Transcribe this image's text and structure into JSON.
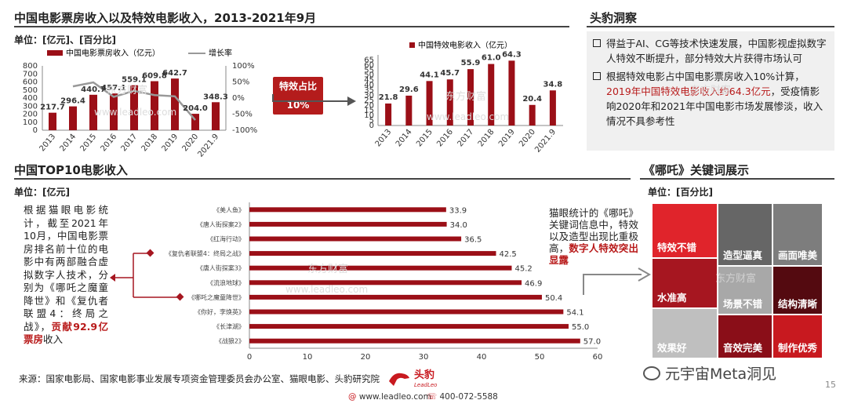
{
  "sections": {
    "box_office_title": "中国电影票房收入以及特效电影收入，2013-2021年9月",
    "insight_title": "头豹洞察",
    "top10_title": "中国TOP10电影收入",
    "keyword_title": "《哪吒》关键词展示"
  },
  "units": {
    "box_office": "单位：[亿元]、[百分比]",
    "top10": "单位：[亿元]",
    "keyword": "单位：[百分比]"
  },
  "callout": {
    "label": "特效占比10%"
  },
  "insights": {
    "item1": "得益于AI、CG等技术快速发展，中国影视虚拟数字人特效不断提升，部分特效大片获得市场认可",
    "item2_a": "根据特效电影占中国电影票房收入10%计算，",
    "item2_b": "2019年中国特效电影收入约64.3亿元",
    "item2_c": "，受疫情影响2020年和2021年中国电影市场发展惨淡，收入情况不具参考性"
  },
  "left_text": {
    "a": "根据猫眼电影统计，截至2021年10月，中国电影票房排名前十位的电影中有两部融合虚拟数字人技术，分别为《哪吒之魔童降世》和《复仇者联盟4：终局之战》，",
    "b": "贡献92.9亿票房",
    "c": "收入"
  },
  "right_text": {
    "a": "猫眼统计的《哪吒》关键词信息中，特效以及造型出现比重极高，",
    "b": "数字人特效突出显露"
  },
  "keywords": [
    {
      "label": "特效不错",
      "color": "#e0242b"
    },
    {
      "label": "造型逼真",
      "color": "#666666"
    },
    {
      "label": "画面唯美",
      "color": "#7d7d7d"
    },
    {
      "label": "水准高",
      "color": "#a61620"
    },
    {
      "label": "场景不错",
      "color": "#a8a8a8"
    },
    {
      "label": "结构清晰",
      "color": "#540a10"
    },
    {
      "label": "效果好",
      "color": "#bfbfbf"
    },
    {
      "label": "音效完美",
      "color": "#8a0e18"
    },
    {
      "label": "制作优秀",
      "color": "#c8191f"
    }
  ],
  "footer": {
    "source": "来源：国家电影局、国家电影事业发展专项资金管理委员会办公室、猫眼电影、头豹研究院",
    "brand_cn": "头豹",
    "brand_en": "LeadLeo",
    "site": "www.leadleo.com",
    "phone": "400-072-5588",
    "page": "15"
  },
  "watermarks": {
    "cn": "东方财富",
    "url": "www.leadleo.com"
  },
  "badge": {
    "source_tag": "元宇宙Meta洞见"
  },
  "colors": {
    "accent": "#9b0f17",
    "line": "#999999",
    "rule": "#444444"
  },
  "chart_data": [
    {
      "type": "bar",
      "categories": [
        "2013",
        "2014",
        "2015",
        "2016",
        "2017",
        "2018",
        "2019",
        "2020",
        "2021.9"
      ],
      "series": [
        {
          "name": "中国电影票房收入（亿元）",
          "type": "bar",
          "axis": "left",
          "values": [
            217.7,
            296.4,
            440.7,
            457.1,
            559.1,
            609.8,
            642.7,
            204.0,
            348.3
          ]
        },
        {
          "name": "增长率",
          "type": "line",
          "axis": "right",
          "values": [
            null,
            36.2,
            48.7,
            3.7,
            22.3,
            9.1,
            5.4,
            -68.3,
            null
          ]
        }
      ],
      "ylim": [
        0,
        800
      ],
      "yticks": [
        "0",
        "100",
        "200",
        "300",
        "400",
        "500",
        "600",
        "700",
        "800"
      ],
      "ylim_right": [
        -100,
        100
      ],
      "yticks_right": [
        "-100%",
        "-50%",
        "0%",
        "50%",
        "100%"
      ],
      "legend": "top"
    },
    {
      "type": "bar",
      "categories": [
        "2013",
        "2014",
        "2015",
        "2016",
        "2017",
        "2018",
        "2019",
        "2020",
        "2021.9"
      ],
      "series": [
        {
          "name": "中国特效电影收入（亿元）",
          "values": [
            21.8,
            29.6,
            44.1,
            45.7,
            55.9,
            61.0,
            64.3,
            20.4,
            34.8
          ]
        }
      ],
      "ylim": [
        0,
        70
      ],
      "yticks": [
        "0",
        "5",
        "10",
        "15",
        "20",
        "25",
        "30",
        "35",
        "40",
        "45",
        "50",
        "55",
        "60",
        "65"
      ],
      "legend": "top"
    },
    {
      "type": "bar",
      "orientation": "horizontal",
      "categories": [
        "《美人鱼》",
        "《唐人街探案2》",
        "《红海行动》",
        "《复仇者联盟4：终局之战》",
        "《唐人街探案3》",
        "《流浪地球》",
        "《哪吒之魔童降世》",
        "《你好，李焕英》",
        "《长津湖》",
        "《战狼2》"
      ],
      "values": [
        33.9,
        34.0,
        36.5,
        42.5,
        45.2,
        46.9,
        50.4,
        54.1,
        55.0,
        57.0
      ],
      "highlight": [
        "《复仇者联盟4：终局之战》",
        "《哪吒之魔童降世》"
      ],
      "xlim": [
        0,
        60
      ],
      "xticks": [
        "0",
        "10",
        "20",
        "30",
        "40",
        "50",
        "60"
      ]
    }
  ]
}
